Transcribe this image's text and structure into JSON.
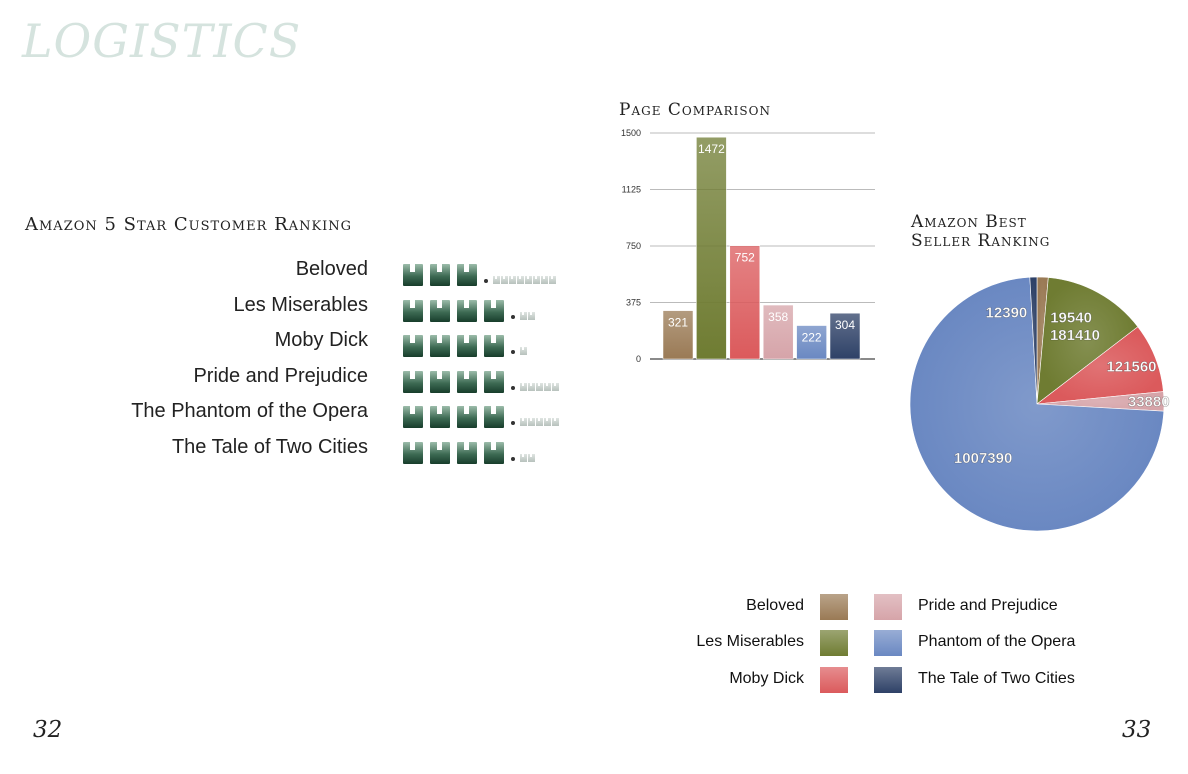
{
  "spread_title": "LOGISTICS",
  "page_numbers": {
    "left": "32",
    "right": "33"
  },
  "ranking": {
    "title": "Amazon 5 Star Customer Ranking",
    "rows": [
      {
        "label": "Beloved",
        "full_icons": 3,
        "small_icons": 8
      },
      {
        "label": "Les Miserables",
        "full_icons": 4,
        "small_icons": 2
      },
      {
        "label": "Moby Dick",
        "full_icons": 4,
        "small_icons": 1
      },
      {
        "label": "Pride and Prejudice",
        "full_icons": 4,
        "small_icons": 5
      },
      {
        "label": "The Phantom of the Opera",
        "full_icons": 4,
        "small_icons": 5
      },
      {
        "label": "The Tale of Two Cities",
        "full_icons": 4,
        "small_icons": 2
      }
    ]
  },
  "colors": {
    "beloved": "#9a7a55",
    "les_miserables": "#6f7c32",
    "moby_dick": "#db5a5c",
    "pride_and_prejudice": "#d6a4a9",
    "phantom": "#6a88c2",
    "tale": "#2e4167"
  },
  "chart_data": [
    {
      "type": "bar",
      "title": "Page Comparison",
      "categories": [
        "Beloved",
        "Les Miserables",
        "Moby Dick",
        "Pride and Prejudice",
        "Phantom of the Opera",
        "The Tale of Two Cities"
      ],
      "values": [
        321,
        1472,
        752,
        358,
        222,
        304
      ],
      "data_labels": [
        "321",
        "1472",
        "752",
        "358",
        "222",
        "304"
      ],
      "y_ticks": [
        "0",
        "375",
        "750",
        "1125",
        "1500"
      ],
      "ylim": [
        0,
        1500
      ],
      "grid": true,
      "colors": [
        "#9a7a55",
        "#6f7c32",
        "#db5a5c",
        "#d6a4a9",
        "#6a88c2",
        "#2e4167"
      ]
    },
    {
      "type": "pie",
      "title": "Amazon Best Seller Ranking",
      "start_category": "Beloved",
      "categories": [
        "Beloved",
        "Les Miserables",
        "Moby Dick",
        "Pride and Prejudice",
        "Phantom of the Opera",
        "The Tale of Two Cities"
      ],
      "values": [
        19540,
        181410,
        121560,
        33880,
        1007390,
        12390
      ],
      "data_labels": [
        "19540",
        "181410",
        "121560",
        "33880",
        "1007390",
        "12390"
      ],
      "colors": [
        "#9a7a55",
        "#6f7c32",
        "#db5a5c",
        "#d6a4a9",
        "#6a88c2",
        "#2e4167"
      ]
    }
  ],
  "legend": [
    {
      "label": "Beloved",
      "color": "#9a7a55"
    },
    {
      "label": "Les Miserables",
      "color": "#6f7c32"
    },
    {
      "label": "Moby Dick",
      "color": "#db5a5c"
    },
    {
      "label": "Pride and Prejudice",
      "color": "#d6a4a9"
    },
    {
      "label": "Phantom of the Opera",
      "color": "#6a88c2"
    },
    {
      "label": "The Tale of Two Cities",
      "color": "#2e4167"
    }
  ]
}
